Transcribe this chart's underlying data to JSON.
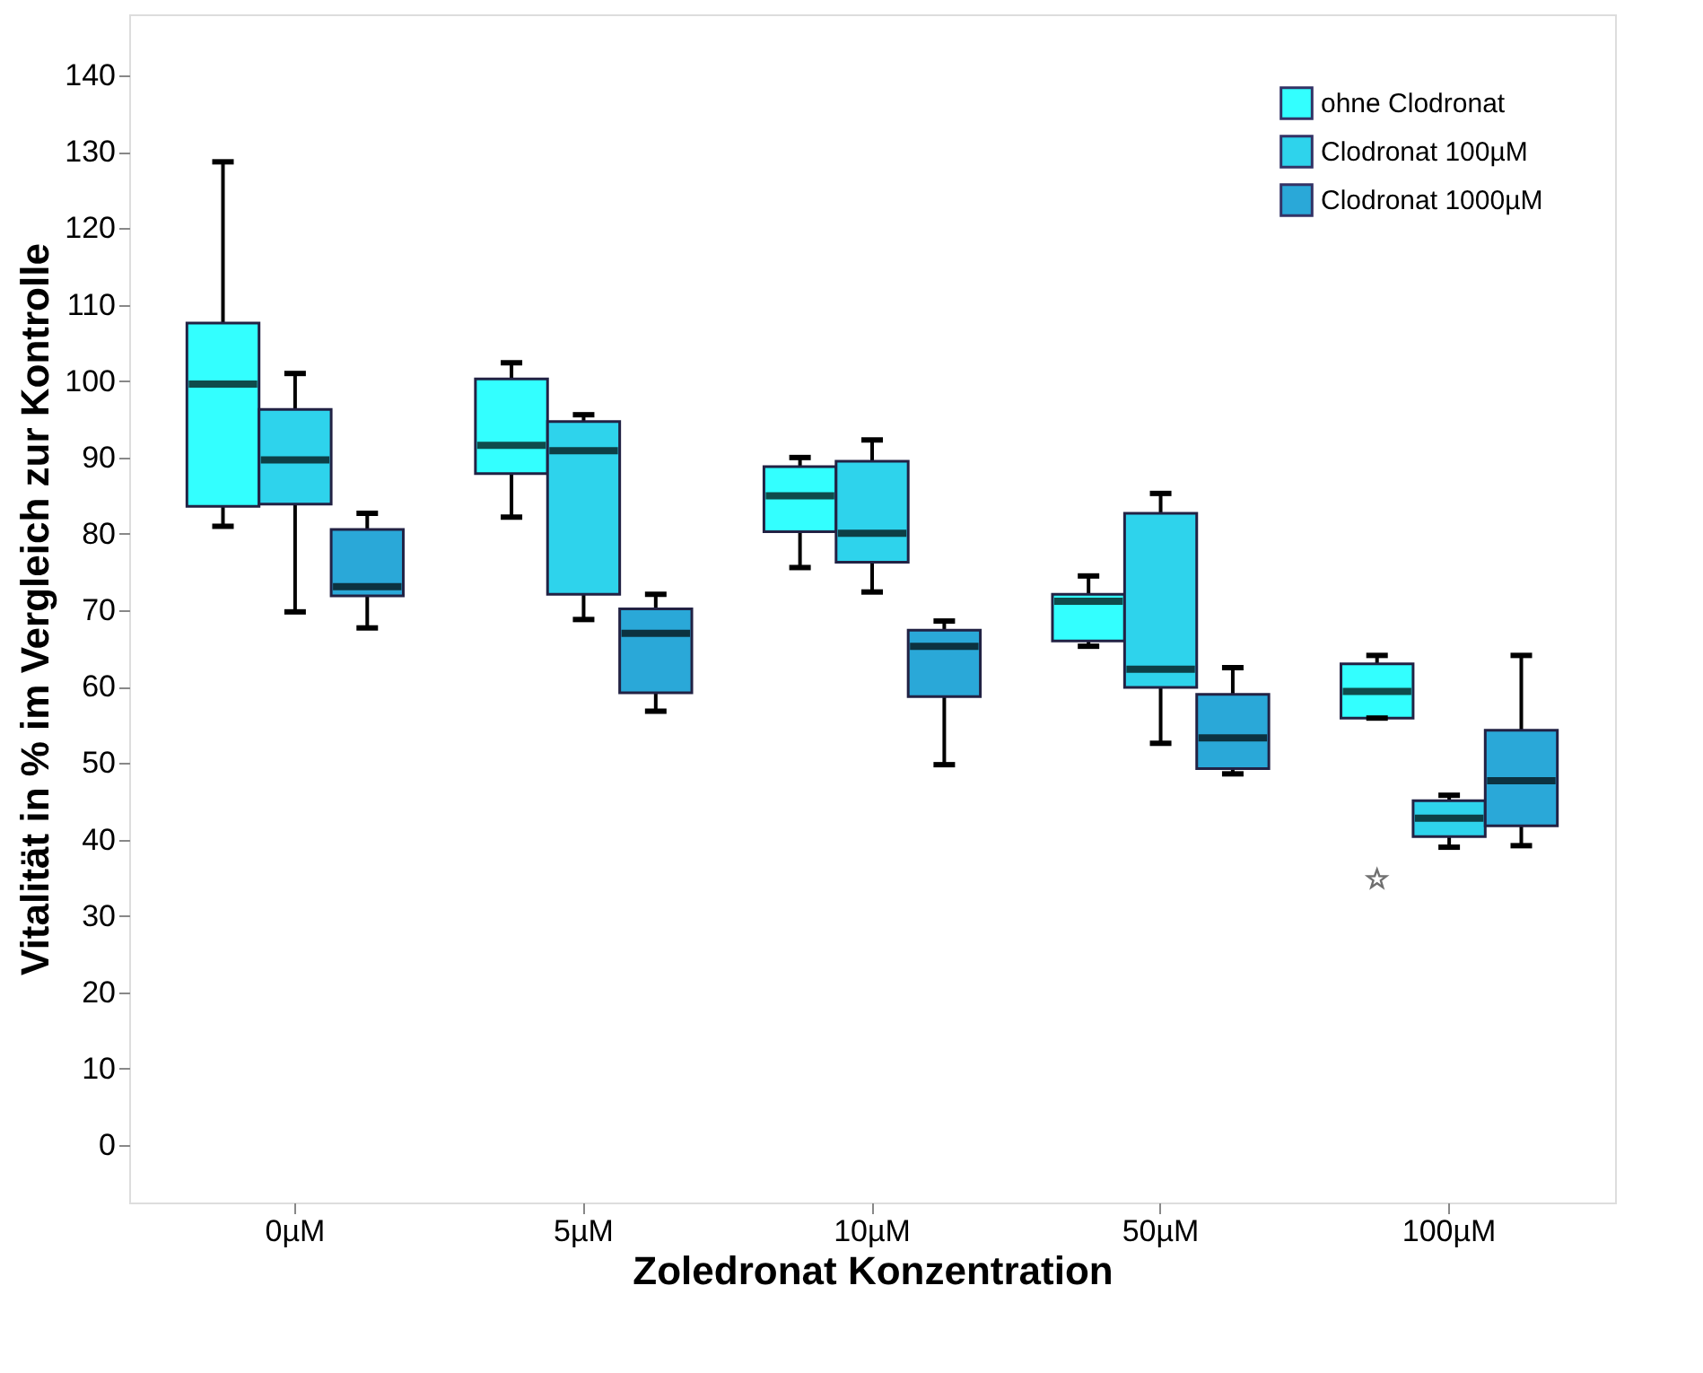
{
  "chart_data": {
    "type": "box",
    "xlabel": "Zoledronat Konzentration",
    "ylabel": "Vitalität in % im Vergleich zur Kontrolle",
    "categories": [
      "0µM",
      "5µM",
      "10µM",
      "50µM",
      "100µM"
    ],
    "ylim": [
      -7.5,
      148
    ],
    "yticks": [
      0,
      10,
      20,
      30,
      40,
      50,
      60,
      70,
      80,
      90,
      100,
      110,
      120,
      130,
      140
    ],
    "grid": false,
    "legend": "top right",
    "series": [
      {
        "name": "ohne Clodronat",
        "color": "#33ffff",
        "boxes": [
          {
            "low": 81,
            "q1": 83.6,
            "median": 99.6,
            "q3": 107.6,
            "high": 128.7
          },
          {
            "low": 82.2,
            "q1": 87.9,
            "median": 91.6,
            "q3": 100.3,
            "high": 102.4
          },
          {
            "low": 75.6,
            "q1": 80.3,
            "median": 85,
            "q3": 88.8,
            "high": 90
          },
          {
            "low": 65.3,
            "q1": 66,
            "median": 71.2,
            "q3": 72.1,
            "high": 74.5
          },
          {
            "low": 55.9,
            "q1": 55.9,
            "median": 59.4,
            "q3": 63,
            "high": 64.1,
            "outliers": [
              34.8
            ]
          }
        ]
      },
      {
        "name": "Clodronat 100µM",
        "color": "#2ed3ec",
        "boxes": [
          {
            "low": 69.8,
            "q1": 83.9,
            "median": 89.7,
            "q3": 96.3,
            "high": 101
          },
          {
            "low": 68.8,
            "q1": 72.1,
            "median": 90.9,
            "q3": 94.7,
            "high": 95.6
          },
          {
            "low": 72.4,
            "q1": 76.3,
            "median": 80.1,
            "q3": 89.5,
            "high": 92.3
          },
          {
            "low": 52.6,
            "q1": 59.9,
            "median": 62.3,
            "q3": 82.7,
            "high": 85.3
          },
          {
            "low": 39,
            "q1": 40.4,
            "median": 42.8,
            "q3": 45.1,
            "high": 45.8
          }
        ]
      },
      {
        "name": "Clodronat 1000µM",
        "color": "#2aa8d8",
        "boxes": [
          {
            "low": 67.7,
            "q1": 71.9,
            "median": 73.1,
            "q3": 80.6,
            "high": 82.7
          },
          {
            "low": 56.8,
            "q1": 59.2,
            "median": 67,
            "q3": 70.2,
            "high": 72.1
          },
          {
            "low": 49.8,
            "q1": 58.7,
            "median": 65.3,
            "q3": 67.4,
            "high": 68.6
          },
          {
            "low": 48.6,
            "q1": 49.3,
            "median": 53.3,
            "q3": 59,
            "high": 62.5
          },
          {
            "low": 39.2,
            "q1": 41.8,
            "median": 47.7,
            "q3": 54.3,
            "high": 64.1
          }
        ]
      }
    ]
  }
}
